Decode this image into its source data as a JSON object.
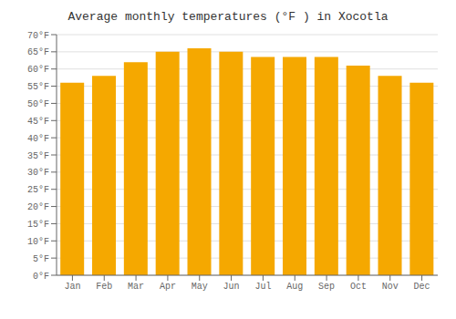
{
  "chart_data": {
    "type": "bar",
    "title": "Average monthly temperatures (°F ) in Xocotla",
    "categories": [
      "Jan",
      "Feb",
      "Mar",
      "Apr",
      "May",
      "Jun",
      "Jul",
      "Aug",
      "Sep",
      "Oct",
      "Nov",
      "Dec"
    ],
    "values": [
      56,
      58,
      62,
      65,
      66,
      65,
      63.5,
      63.5,
      63.5,
      61,
      58,
      56
    ],
    "color": "#F5A800",
    "ylim": [
      0,
      70
    ],
    "yticks": [
      {
        "value": 0,
        "label": "0°F"
      },
      {
        "value": 5,
        "label": "5°F"
      },
      {
        "value": 10,
        "label": "10°F"
      },
      {
        "value": 15,
        "label": "15°F"
      },
      {
        "value": 20,
        "label": "20°F"
      },
      {
        "value": 25,
        "label": "25°F"
      },
      {
        "value": 30,
        "label": "30°F"
      },
      {
        "value": 35,
        "label": "35°F"
      },
      {
        "value": 40,
        "label": "40°F"
      },
      {
        "value": 45,
        "label": "45°F"
      },
      {
        "value": 50,
        "label": "50°F"
      },
      {
        "value": 55,
        "label": "55°F"
      },
      {
        "value": 60,
        "label": "60°F"
      },
      {
        "value": 65,
        "label": "65°F"
      },
      {
        "value": 70,
        "label": "70°F"
      }
    ],
    "grid": true
  }
}
